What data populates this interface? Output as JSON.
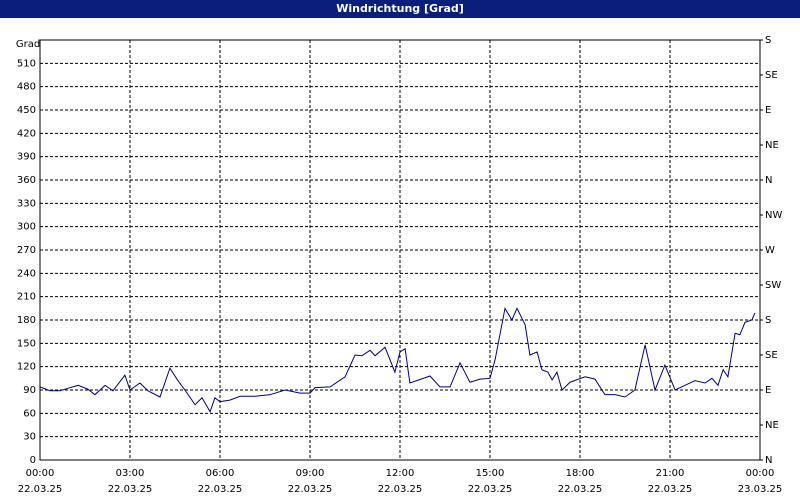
{
  "chart_data": {
    "type": "line",
    "title": "Windrichtung [Grad]",
    "y_label": "Grad",
    "x": [
      0,
      0.33,
      0.67,
      1.0,
      1.27,
      1.6,
      1.83,
      2.17,
      2.43,
      2.83,
      3.0,
      3.33,
      3.6,
      4.0,
      4.33,
      4.6,
      4.83,
      5.17,
      5.4,
      5.67,
      5.83,
      6.0,
      6.33,
      6.67,
      7.17,
      7.67,
      8.17,
      8.67,
      9.0,
      9.17,
      9.67,
      10.17,
      10.5,
      10.73,
      11.0,
      11.17,
      11.5,
      11.83,
      12.0,
      12.17,
      12.33,
      13.0,
      13.33,
      13.67,
      14.0,
      14.33,
      14.67,
      15.0,
      15.17,
      15.5,
      15.73,
      15.9,
      16.17,
      16.33,
      16.57,
      16.73,
      16.93,
      17.07,
      17.23,
      17.4,
      17.67,
      18.17,
      18.5,
      18.83,
      19.17,
      19.5,
      19.83,
      20.17,
      20.5,
      20.83,
      21.17,
      21.5,
      21.83,
      22.17,
      22.4,
      22.6,
      22.77,
      22.93,
      23.17,
      23.33,
      23.5,
      23.73,
      23.83
    ],
    "series": [
      {
        "name": "Windrichtung",
        "color": "#000080",
        "values": [
          94,
          89,
          89,
          93,
          96,
          91,
          84,
          96,
          89,
          109,
          90,
          99,
          89,
          81,
          118,
          102,
          90,
          71,
          80,
          62,
          80,
          75,
          77,
          82,
          82,
          84,
          90,
          86,
          86,
          93,
          94,
          107,
          135,
          134,
          141,
          134,
          145,
          113,
          139,
          143,
          99,
          108,
          94,
          94,
          125,
          100,
          104,
          105,
          129,
          195,
          180,
          195,
          174,
          135,
          139,
          116,
          113,
          103,
          113,
          90,
          100,
          107,
          104,
          84,
          84,
          81,
          90,
          148,
          90,
          122,
          90,
          96,
          102,
          99,
          105,
          96,
          116,
          107,
          163,
          161,
          177,
          180,
          189
        ]
      }
    ],
    "xlim": [
      0,
      24
    ],
    "xticks": [
      {
        "value": 0,
        "label": "00:00",
        "date": "22.03.25"
      },
      {
        "value": 3,
        "label": "03:00",
        "date": "22.03.25"
      },
      {
        "value": 6,
        "label": "06:00",
        "date": "22.03.25"
      },
      {
        "value": 9,
        "label": "09:00",
        "date": "22.03.25"
      },
      {
        "value": 12,
        "label": "12:00",
        "date": "22.03.25"
      },
      {
        "value": 15,
        "label": "15:00",
        "date": "22.03.25"
      },
      {
        "value": 18,
        "label": "18:00",
        "date": "22.03.25"
      },
      {
        "value": 21,
        "label": "21:00",
        "date": "22.03.25"
      },
      {
        "value": 24,
        "label": "00:00",
        "date": "23.03.25"
      }
    ],
    "ylim": [
      0,
      540
    ],
    "yticks": [
      0,
      30,
      60,
      90,
      120,
      150,
      180,
      210,
      240,
      270,
      300,
      330,
      360,
      390,
      420,
      450,
      480,
      510
    ],
    "y2lim": [
      0,
      540
    ],
    "y2ticks": [
      {
        "value": 0,
        "label": "N"
      },
      {
        "value": 45,
        "label": "NE"
      },
      {
        "value": 90,
        "label": "E"
      },
      {
        "value": 135,
        "label": "SE"
      },
      {
        "value": 180,
        "label": "S"
      },
      {
        "value": 225,
        "label": "SW"
      },
      {
        "value": 270,
        "label": "W"
      },
      {
        "value": 315,
        "label": "NW"
      },
      {
        "value": 360,
        "label": "N"
      },
      {
        "value": 405,
        "label": "NE"
      },
      {
        "value": 450,
        "label": "E"
      },
      {
        "value": 495,
        "label": "SE"
      },
      {
        "value": 540,
        "label": "S"
      }
    ],
    "grid": true
  }
}
